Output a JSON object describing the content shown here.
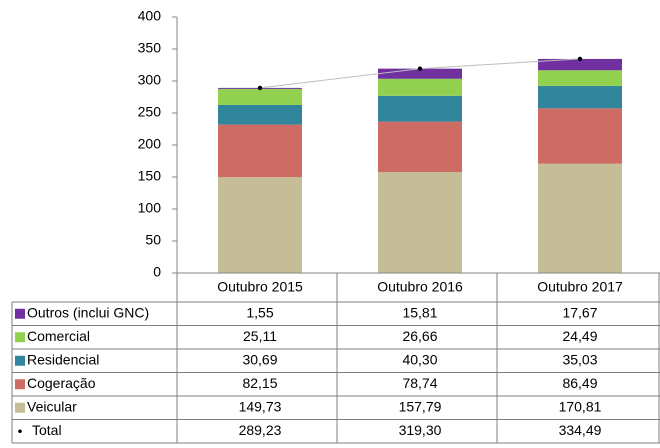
{
  "chart_data": {
    "type": "bar",
    "stacked": true,
    "categories": [
      "Outubro 2015",
      "Outubro 2016",
      "Outubro 2017"
    ],
    "ylim": [
      0,
      400
    ],
    "yticks": [
      0,
      50,
      100,
      150,
      200,
      250,
      300,
      350,
      400
    ],
    "series": [
      {
        "name": "Veicular",
        "color": "#c4bd97",
        "values": [
          149.73,
          157.79,
          170.81
        ],
        "value_labels": [
          "149,73",
          "157,79",
          "170,81"
        ]
      },
      {
        "name": "Cogeração",
        "color": "#cf6b65",
        "values": [
          82.15,
          78.74,
          86.49
        ],
        "value_labels": [
          "82,15",
          "78,74",
          "86,49"
        ]
      },
      {
        "name": "Residencial",
        "color": "#31859c",
        "values": [
          30.69,
          40.3,
          35.03
        ],
        "value_labels": [
          "30,69",
          "40,30",
          "35,03"
        ]
      },
      {
        "name": "Comercial",
        "color": "#92d050",
        "values": [
          25.11,
          26.66,
          24.49
        ],
        "value_labels": [
          "25,11",
          "26,66",
          "24,49"
        ]
      },
      {
        "name": "Outros (inclui GNC)",
        "color": "#7030a0",
        "values": [
          1.55,
          15.81,
          17.67
        ],
        "value_labels": [
          "1,55",
          "15,81",
          "17,67"
        ]
      },
      {
        "name": "Total",
        "type": "line",
        "color": "#000000",
        "values": [
          289.23,
          319.3,
          334.49
        ],
        "value_labels": [
          "289,23",
          "319,30",
          "334,49"
        ]
      }
    ]
  }
}
